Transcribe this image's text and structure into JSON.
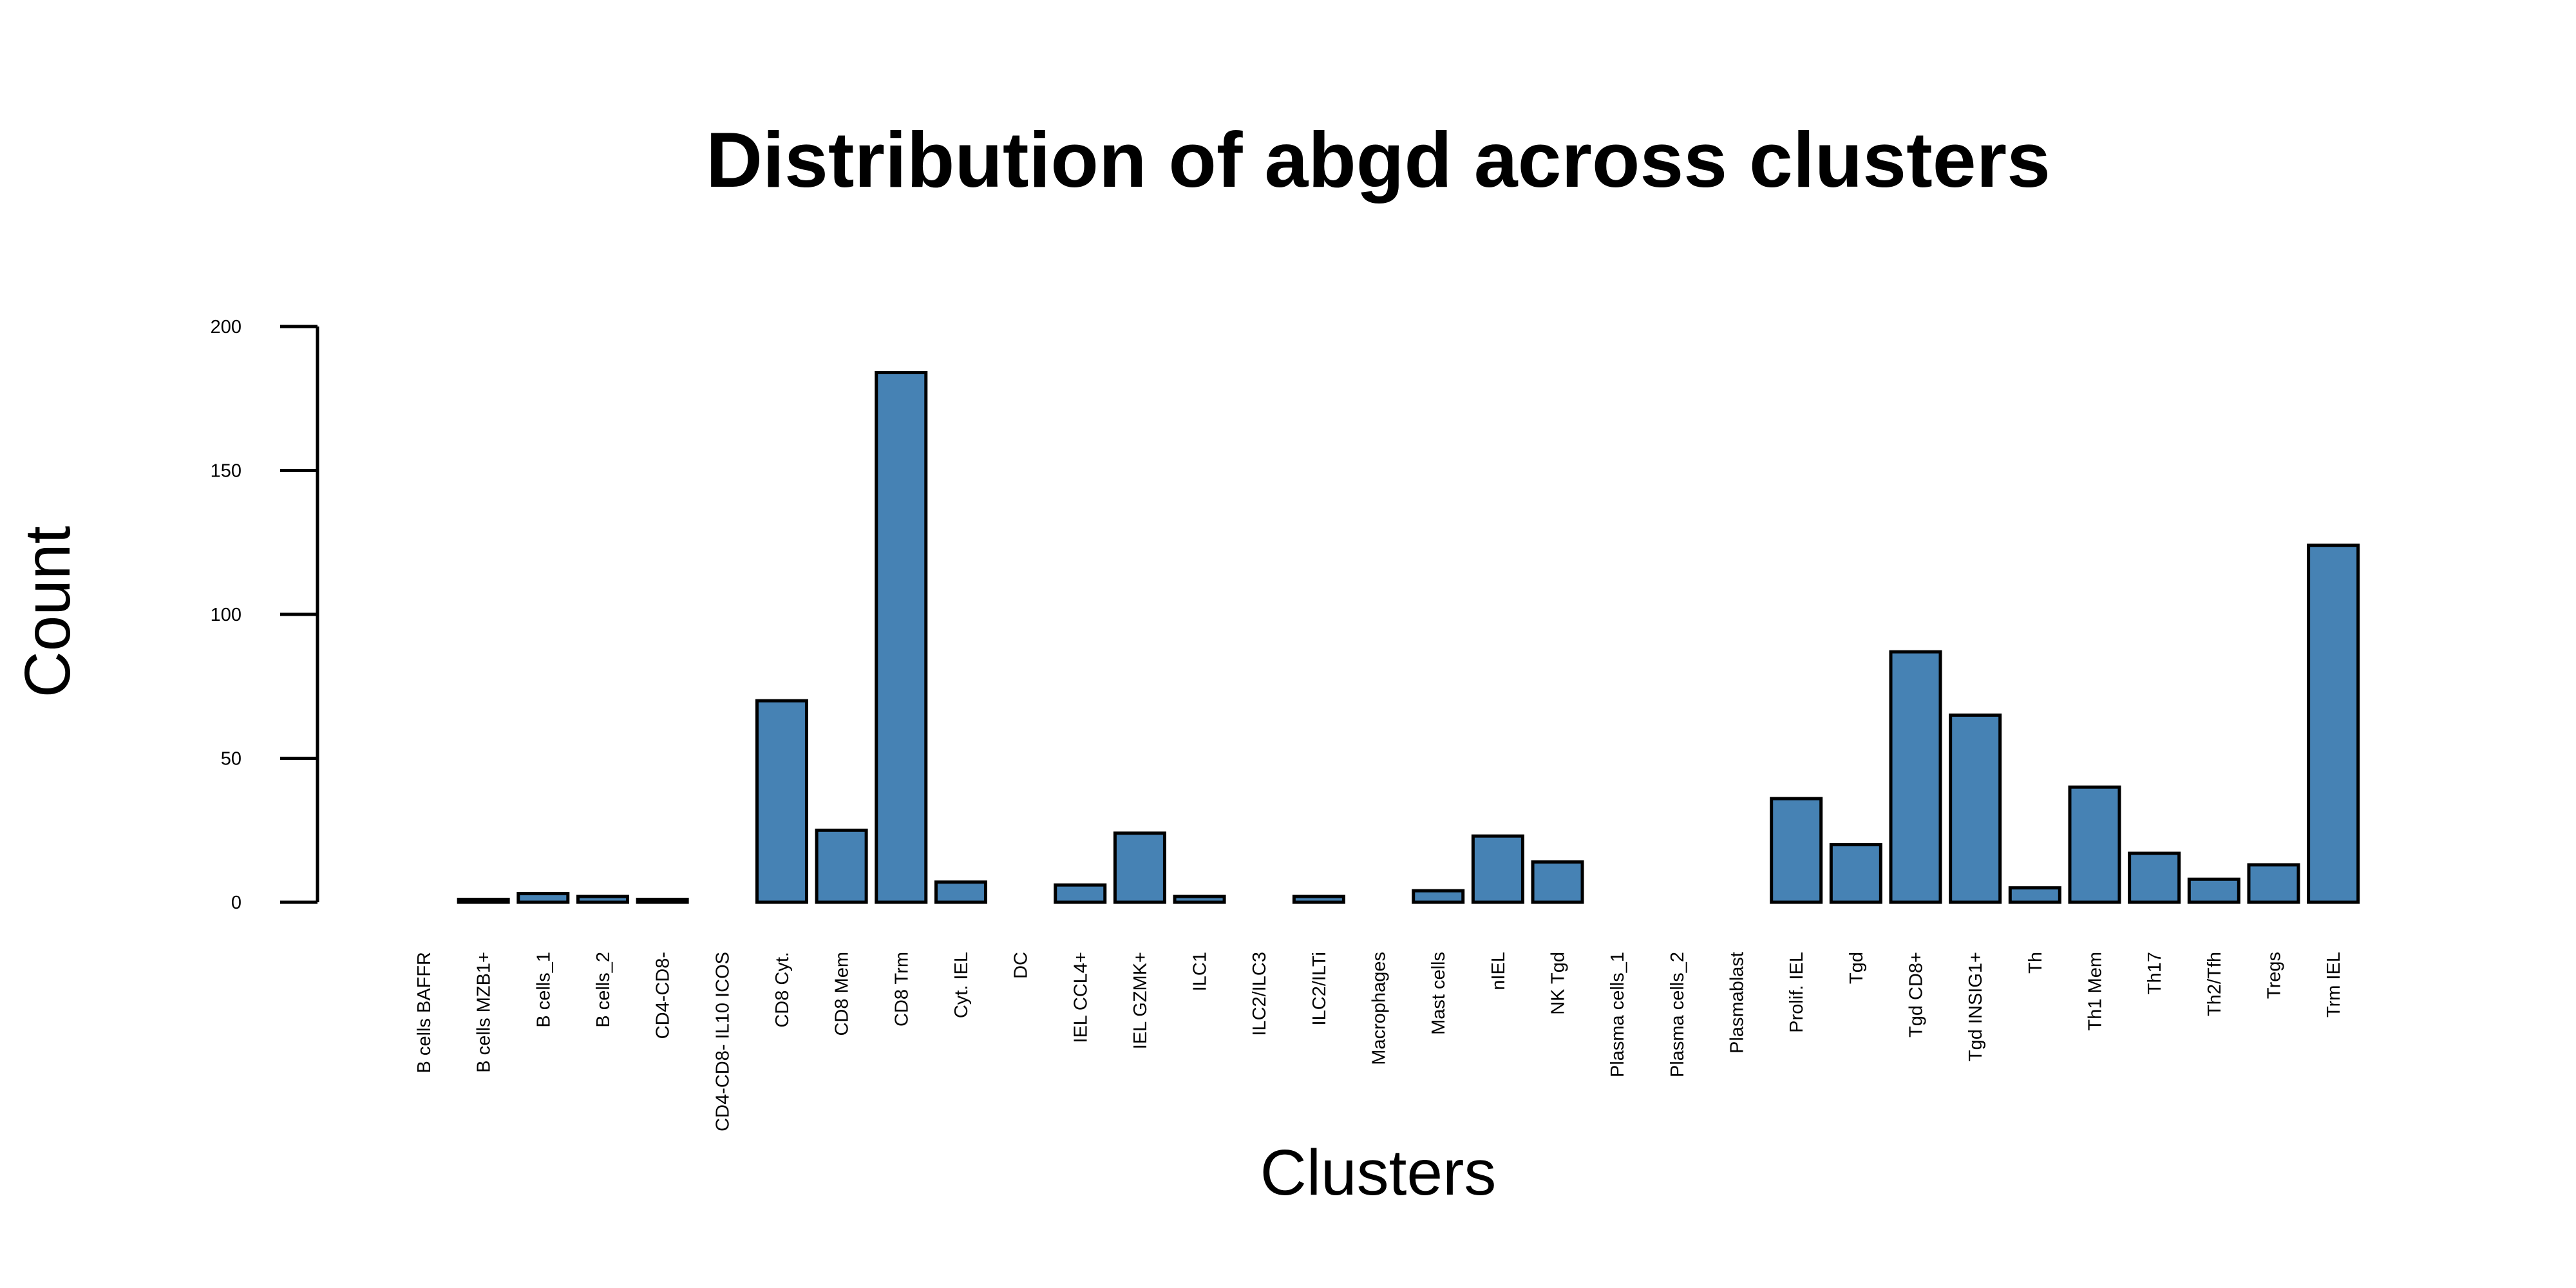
{
  "chart_data": {
    "type": "bar",
    "title": "Distribution of abgd across clusters",
    "xlabel": "Clusters",
    "ylabel": "Count",
    "ylim": [
      0,
      200
    ],
    "yticks": [
      0,
      50,
      100,
      150,
      200
    ],
    "bar_color": "#4682b4",
    "categories": [
      "B cells BAFFR",
      "B cells MZB1+",
      "B cells_1",
      "B cells_2",
      "CD4-CD8-",
      "CD4-CD8- IL10 ICOS",
      "CD8 Cyt.",
      "CD8 Mem",
      "CD8 Trm",
      "Cyt. IEL",
      "DC",
      "IEL CCL4+",
      "IEL GZMK+",
      "ILC1",
      "ILC2/ILC3",
      "ILC2/ILTi",
      "Macrophages",
      "Mast cells",
      "nIEL",
      "NK Tgd",
      "Plasma cells_1",
      "Plasma cells_2",
      "Plasmablast",
      "Prolif. IEL",
      "Tgd",
      "Tgd CD8+",
      "Tgd INSIG1+",
      "Th",
      "Th1 Mem",
      "Th17",
      "Th2/Tfh",
      "Tregs",
      "Trm IEL"
    ],
    "values": [
      0,
      1,
      3,
      2,
      1,
      0,
      70,
      25,
      184,
      7,
      0,
      6,
      24,
      2,
      0,
      2,
      0,
      4,
      23,
      14,
      0,
      0,
      0,
      36,
      20,
      87,
      65,
      5,
      40,
      17,
      8,
      13,
      124
    ]
  }
}
